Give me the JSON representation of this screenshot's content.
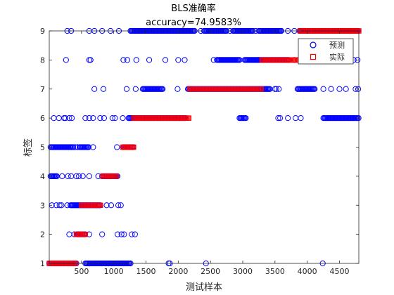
{
  "chart_data": {
    "type": "scatter",
    "title": "BLS准确率",
    "subtitle": "accuracy=74.9583%",
    "xlabel": "测试样本",
    "ylabel": "标签",
    "xlim": [
      0,
      4800
    ],
    "ylim": [
      1,
      9
    ],
    "xticks": [
      500,
      1000,
      1500,
      2000,
      2500,
      3000,
      3500,
      4000,
      4500
    ],
    "yticks": [
      1,
      2,
      3,
      4,
      5,
      6,
      7,
      8,
      9
    ],
    "grid": false,
    "legend": "top-right",
    "series": [
      {
        "name": "预测",
        "marker": "circle",
        "color": "#0000ff",
        "dense_ranges": [
          {
            "label": 1,
            "from": 0,
            "to": 420
          },
          {
            "label": 1,
            "from": 560,
            "to": 1260
          },
          {
            "label": 2,
            "from": 430,
            "to": 560
          },
          {
            "label": 3,
            "from": 330,
            "to": 800
          },
          {
            "label": 4,
            "from": 20,
            "to": 130
          },
          {
            "label": 4,
            "from": 820,
            "to": 1070
          },
          {
            "label": 5,
            "from": 20,
            "to": 380
          },
          {
            "label": 5,
            "from": 470,
            "to": 620
          },
          {
            "label": 5,
            "from": 1150,
            "to": 1310
          },
          {
            "label": 6,
            "from": 1230,
            "to": 2120
          },
          {
            "label": 6,
            "from": 2950,
            "to": 3050
          },
          {
            "label": 6,
            "from": 4250,
            "to": 4800
          },
          {
            "label": 7,
            "from": 1450,
            "to": 1770
          },
          {
            "label": 7,
            "from": 2150,
            "to": 3280
          },
          {
            "label": 7,
            "from": 3280,
            "to": 3420
          },
          {
            "label": 7,
            "from": 3850,
            "to": 4120
          },
          {
            "label": 8,
            "from": 2600,
            "to": 2950
          },
          {
            "label": 8,
            "from": 3030,
            "to": 3240
          },
          {
            "label": 8,
            "from": 3240,
            "to": 3720
          },
          {
            "label": 9,
            "from": 1260,
            "to": 2260
          },
          {
            "label": 9,
            "from": 2400,
            "to": 2750
          },
          {
            "label": 9,
            "from": 2850,
            "to": 3170
          },
          {
            "label": 9,
            "from": 3250,
            "to": 3600
          },
          {
            "label": 9,
            "from": 3880,
            "to": 4800
          }
        ],
        "points": [
          [
            280,
            9
          ],
          [
            340,
            9
          ],
          [
            620,
            9
          ],
          [
            700,
            9
          ],
          [
            820,
            9
          ],
          [
            950,
            9
          ],
          [
            1080,
            9
          ],
          [
            2350,
            9
          ],
          [
            2800,
            9
          ],
          [
            3200,
            9
          ],
          [
            3700,
            9
          ],
          [
            3800,
            9
          ],
          [
            260,
            8
          ],
          [
            620,
            8
          ],
          [
            640,
            8
          ],
          [
            1150,
            8
          ],
          [
            1210,
            8
          ],
          [
            1350,
            8
          ],
          [
            1550,
            8
          ],
          [
            1800,
            8
          ],
          [
            2000,
            8
          ],
          [
            2100,
            8
          ],
          [
            2550,
            8
          ],
          [
            3800,
            8
          ],
          [
            3930,
            8
          ],
          [
            4080,
            8
          ],
          [
            4370,
            8
          ],
          [
            4520,
            8
          ],
          [
            4720,
            8
          ],
          [
            4780,
            8
          ],
          [
            700,
            7
          ],
          [
            840,
            7
          ],
          [
            1200,
            7
          ],
          [
            1340,
            7
          ],
          [
            1990,
            7
          ],
          [
            3500,
            7
          ],
          [
            3520,
            7
          ],
          [
            3560,
            7
          ],
          [
            4250,
            7
          ],
          [
            4370,
            7
          ],
          [
            4500,
            7
          ],
          [
            4600,
            7
          ],
          [
            4750,
            7
          ],
          [
            4790,
            7
          ],
          [
            70,
            6
          ],
          [
            150,
            6
          ],
          [
            230,
            6
          ],
          [
            250,
            6
          ],
          [
            310,
            6
          ],
          [
            350,
            6
          ],
          [
            560,
            6
          ],
          [
            620,
            6
          ],
          [
            680,
            6
          ],
          [
            790,
            6
          ],
          [
            850,
            6
          ],
          [
            980,
            6
          ],
          [
            1020,
            6
          ],
          [
            1140,
            6
          ],
          [
            3550,
            6
          ],
          [
            3580,
            6
          ],
          [
            3700,
            6
          ],
          [
            3820,
            6
          ],
          [
            3900,
            6
          ],
          [
            400,
            5
          ],
          [
            440,
            5
          ],
          [
            680,
            5
          ],
          [
            1050,
            5
          ],
          [
            200,
            4
          ],
          [
            290,
            4
          ],
          [
            340,
            4
          ],
          [
            420,
            4
          ],
          [
            460,
            4
          ],
          [
            520,
            4
          ],
          [
            620,
            4
          ],
          [
            760,
            4
          ],
          [
            40,
            3
          ],
          [
            110,
            3
          ],
          [
            160,
            3
          ],
          [
            190,
            3
          ],
          [
            280,
            3
          ],
          [
            890,
            3
          ],
          [
            960,
            3
          ],
          [
            1070,
            3
          ],
          [
            1110,
            3
          ],
          [
            310,
            2
          ],
          [
            390,
            2
          ],
          [
            620,
            2
          ],
          [
            820,
            2
          ],
          [
            1060,
            2
          ],
          [
            1120,
            2
          ],
          [
            1160,
            2
          ],
          [
            1280,
            2
          ],
          [
            1330,
            2
          ],
          [
            1850,
            1
          ],
          [
            1870,
            1
          ],
          [
            2430,
            1
          ],
          [
            4240,
            1
          ]
        ]
      },
      {
        "name": "实际",
        "marker": "square",
        "color": "#ff0000",
        "dense_ranges": [
          {
            "label": 1,
            "from": 0,
            "to": 410
          },
          {
            "label": 2,
            "from": 420,
            "to": 570
          },
          {
            "label": 3,
            "from": 500,
            "to": 800
          },
          {
            "label": 4,
            "from": 830,
            "to": 1050
          },
          {
            "label": 5,
            "from": 1140,
            "to": 1310
          },
          {
            "label": 6,
            "from": 1310,
            "to": 2170
          },
          {
            "label": 7,
            "from": 2180,
            "to": 3290
          },
          {
            "label": 8,
            "from": 3300,
            "to": 3880
          },
          {
            "label": 9,
            "from": 3890,
            "to": 4800
          }
        ],
        "points": []
      }
    ]
  },
  "legend": {
    "items": [
      {
        "label": "预测",
        "color": "#0000ff"
      },
      {
        "label": "实际",
        "color": "#ff0000"
      }
    ]
  }
}
